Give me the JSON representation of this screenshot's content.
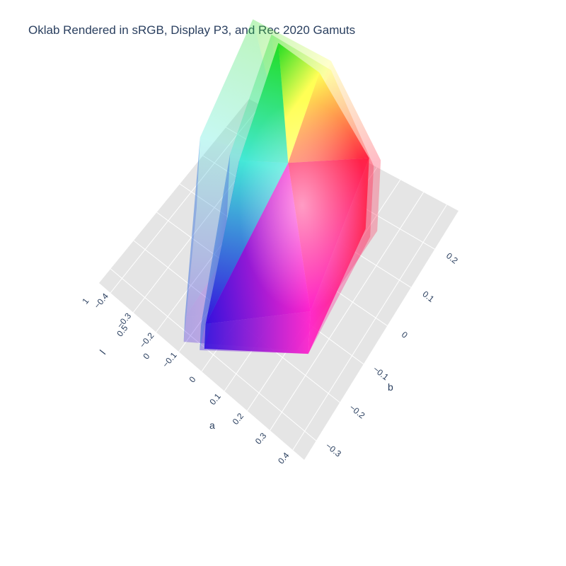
{
  "title": "Oklab Rendered in sRGB, Display P3, and Rec 2020 Gamuts",
  "colors": {
    "title": "#2a3f5f",
    "pane": "#e5e5e5",
    "grid": "#ffffff"
  },
  "chart_data": {
    "type": "surface3d",
    "title": "Oklab Rendered in sRGB, Display P3, and Rec 2020 Gamuts",
    "axes": {
      "a": {
        "label": "a",
        "ticks": [
          "−0.4",
          "−0.3",
          "−0.2",
          "−0.1",
          "0",
          "0.1",
          "0.2",
          "0.3",
          "0.4"
        ]
      },
      "b": {
        "label": "b",
        "ticks": [
          "−0.3",
          "−0.2",
          "−0.1",
          "0",
          "0.1",
          "0.2"
        ]
      },
      "l": {
        "label": "l",
        "ticks": [
          "0",
          "0.5",
          "1"
        ]
      }
    },
    "series": [
      {
        "name": "Rec 2020",
        "opacity": 0.3,
        "corners": {
          "green": [
            -0.36,
            0.2
          ],
          "yellow": [
            -0.06,
            0.24
          ],
          "red": [
            0.26,
            0.14
          ],
          "magenta": [
            0.24,
            -0.18
          ],
          "blue": [
            -0.1,
            -0.33
          ],
          "cyan": [
            -0.32,
            -0.06
          ]
        }
      },
      {
        "name": "Display P3",
        "opacity": 0.35,
        "corners": {
          "green": [
            -0.27,
            0.19
          ],
          "yellow": [
            -0.04,
            0.22
          ],
          "red": [
            0.25,
            0.12
          ],
          "magenta": [
            0.28,
            -0.17
          ],
          "blue": [
            -0.04,
            -0.32
          ],
          "cyan": [
            -0.2,
            -0.05
          ]
        }
      },
      {
        "name": "sRGB",
        "opacity": 1.0,
        "corners": {
          "green": [
            -0.23,
            0.18
          ],
          "yellow": [
            -0.07,
            0.2
          ],
          "red": [
            0.22,
            0.13
          ],
          "magenta": [
            0.28,
            -0.17
          ],
          "blue": [
            -0.03,
            -0.31
          ],
          "cyan": [
            -0.16,
            -0.05
          ]
        }
      }
    ]
  }
}
